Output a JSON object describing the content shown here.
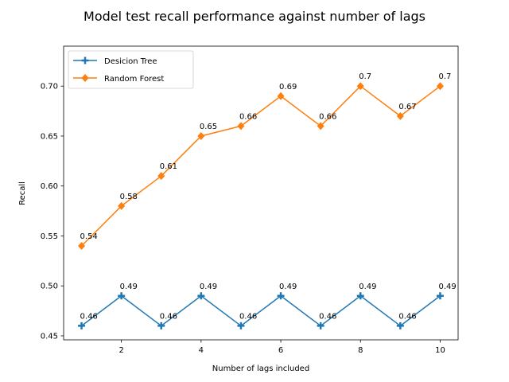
{
  "chart_data": {
    "type": "line",
    "title": "Model test recall performance against number of lags",
    "xlabel": "Number of lags included",
    "ylabel": "Recall",
    "x": [
      1,
      2,
      3,
      4,
      5,
      6,
      7,
      8,
      9,
      10
    ],
    "xticks": [
      2,
      4,
      6,
      8,
      10
    ],
    "yticks": [
      0.45,
      0.5,
      0.55,
      0.6,
      0.65,
      0.7
    ],
    "ytick_labels": [
      "0.45",
      "0.50",
      "0.55",
      "0.60",
      "0.65",
      "0.70"
    ],
    "xlim": [
      0.55,
      10.45
    ],
    "ylim": [
      0.446,
      0.74
    ],
    "grid": false,
    "legend_position": "top-left",
    "series": [
      {
        "name": "Desicion Tree",
        "color": "#1f77b4",
        "marker": "plus",
        "values": [
          0.46,
          0.49,
          0.46,
          0.49,
          0.46,
          0.49,
          0.46,
          0.49,
          0.46,
          0.49
        ],
        "labels": [
          "0.46",
          "0.49",
          "0.46",
          "0.49",
          "0.46",
          "0.49",
          "0.46",
          "0.49",
          "0.46",
          "0.49"
        ]
      },
      {
        "name": "Random Forest",
        "color": "#ff7f0e",
        "marker": "diamond",
        "values": [
          0.54,
          0.58,
          0.61,
          0.65,
          0.66,
          0.69,
          0.66,
          0.7,
          0.67,
          0.7
        ],
        "labels": [
          "0.54",
          "0.58",
          "0.61",
          "0.65",
          "0.66",
          "0.69",
          "0.66",
          "0.7",
          "0.67",
          "0.7"
        ]
      }
    ]
  }
}
